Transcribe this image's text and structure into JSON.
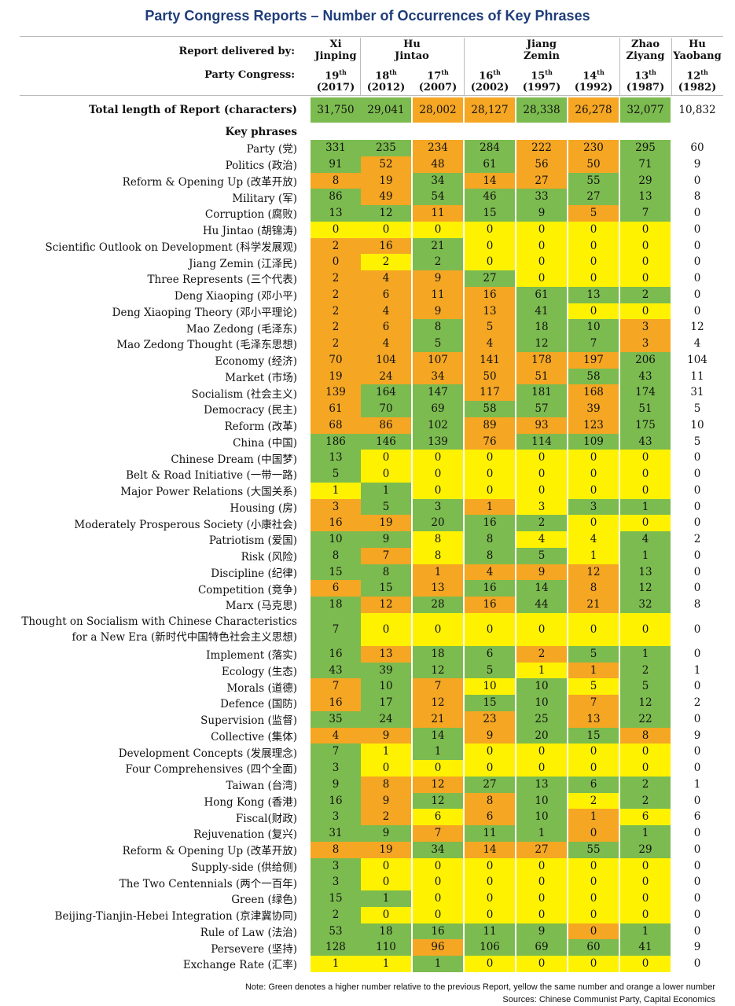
{
  "title": "Party Congress Reports – Number of Occurrences of Key Phrases",
  "colors": {
    "green": "#7cbb4f",
    "yellow": "#fff200",
    "orange": "#f5a623"
  },
  "header": {
    "delivered_label": "Report delivered by:",
    "congress_label": "Party Congress:",
    "leaders": [
      {
        "name": "Xi\nJinping"
      },
      {
        "name": "Hu\nJintao"
      },
      {
        "name": "Jiang\nZemin"
      },
      {
        "name": "Zhao\nZiyang"
      },
      {
        "name": "Hu\nYaobang"
      }
    ],
    "congresses": [
      {
        "num": "19",
        "sup": "th",
        "year": "(2017)"
      },
      {
        "num": "18",
        "sup": "th",
        "year": "(2012)"
      },
      {
        "num": "17",
        "sup": "th",
        "year": "(2007)"
      },
      {
        "num": "16",
        "sup": "th",
        "year": "(2002)"
      },
      {
        "num": "15",
        "sup": "th",
        "year": "(1997)"
      },
      {
        "num": "14",
        "sup": "th",
        "year": "(1992)"
      },
      {
        "num": "13",
        "sup": "th",
        "year": "(1987)"
      },
      {
        "num": "12",
        "sup": "th",
        "year": "(1982)"
      }
    ]
  },
  "total_label": "Total length of Report (characters)",
  "key_phrases_label": "Key phrases",
  "note": "Note: Green denotes a higher number relative to the previous Report, yellow the same number and orange a lower number",
  "sources": "Sources: Chinese Communist Party, Capital Economics",
  "chart_data": {
    "type": "table",
    "columns": [
      "19th (2017)",
      "18th (2012)",
      "17th (2007)",
      "16th (2002)",
      "15th (1997)",
      "14th (1992)",
      "13th (1987)",
      "12th (1982)"
    ],
    "color_legend": {
      "G": "higher than previous report",
      "Y": "same as previous report",
      "O": "lower than previous report",
      "W": "no comparison"
    },
    "total_length": {
      "values": [
        31750,
        29041,
        28002,
        28127,
        28338,
        26278,
        32077,
        10832
      ],
      "display": [
        "31,750",
        "29,041",
        "28,002",
        "28,127",
        "28,338",
        "26,278",
        "32,077",
        "10,832"
      ],
      "colors": "GGOOGOGW"
    },
    "rows": [
      {
        "label": "Party (党)",
        "values": [
          331,
          235,
          234,
          284,
          222,
          230,
          295,
          60
        ],
        "colors": "GGOGOOGW"
      },
      {
        "label": "Politics (政治)",
        "values": [
          91,
          52,
          48,
          61,
          56,
          50,
          71,
          9
        ],
        "colors": "GOOGOOGW"
      },
      {
        "label": "Reform & Opening Up (改革开放)",
        "values": [
          8,
          19,
          34,
          14,
          27,
          55,
          29,
          0
        ],
        "colors": "OOGOOGGW"
      },
      {
        "label": "Military (军)",
        "values": [
          86,
          49,
          54,
          46,
          33,
          27,
          13,
          8
        ],
        "colors": "GOGGGGGW"
      },
      {
        "label": "Corruption (腐败)",
        "values": [
          13,
          12,
          11,
          15,
          9,
          5,
          7,
          0
        ],
        "colors": "GGOGGOGW"
      },
      {
        "label": "Hu Jintao (胡锦涛)",
        "values": [
          0,
          0,
          0,
          0,
          0,
          0,
          0,
          0
        ],
        "colors": "YYYYYYYW"
      },
      {
        "label": "Scientific Outlook on Development (科学发展观)",
        "values": [
          2,
          16,
          21,
          0,
          0,
          0,
          0,
          0
        ],
        "colors": "OOGYYYYW"
      },
      {
        "label": "Jiang Zemin (江泽民)",
        "values": [
          0,
          2,
          2,
          0,
          0,
          0,
          0,
          0
        ],
        "colors": "OYGYYYYW"
      },
      {
        "label": "Three Represents (三个代表)",
        "values": [
          2,
          4,
          9,
          27,
          0,
          0,
          0,
          0
        ],
        "colors": "OOOGYYYW"
      },
      {
        "label": "Deng Xiaoping (邓小平)",
        "values": [
          2,
          6,
          11,
          16,
          61,
          13,
          2,
          0
        ],
        "colors": "OOOOGGGW"
      },
      {
        "label": "Deng Xiaoping Theory (邓小平理论)",
        "values": [
          2,
          4,
          9,
          13,
          41,
          0,
          0,
          0
        ],
        "colors": "OOOOGYYW"
      },
      {
        "label": "Mao Zedong (毛泽东)",
        "values": [
          2,
          6,
          8,
          5,
          18,
          10,
          3,
          12
        ],
        "colors": "OOGOGGOW"
      },
      {
        "label": "Mao Zedong Thought (毛泽东思想)",
        "values": [
          2,
          4,
          5,
          4,
          12,
          7,
          3,
          4
        ],
        "colors": "OOGOGGOW"
      },
      {
        "label": "Economy (经济)",
        "values": [
          70,
          104,
          107,
          141,
          178,
          197,
          206,
          104
        ],
        "colors": "OOOOOOGW"
      },
      {
        "label": "Market (市场)",
        "values": [
          19,
          24,
          34,
          50,
          51,
          58,
          43,
          11
        ],
        "colors": "OOOOOGGW"
      },
      {
        "label": "Socialism (社会主义)",
        "values": [
          139,
          164,
          147,
          117,
          181,
          168,
          174,
          31
        ],
        "colors": "OGGOGOGW"
      },
      {
        "label": "Democracy (民主)",
        "values": [
          61,
          70,
          69,
          58,
          57,
          39,
          51,
          5
        ],
        "colors": "OGGGGOGW"
      },
      {
        "label": "Reform (改革)",
        "values": [
          68,
          86,
          102,
          89,
          93,
          123,
          175,
          10
        ],
        "colors": "OOGOOOGW"
      },
      {
        "label": "China (中国)",
        "values": [
          186,
          146,
          139,
          76,
          114,
          109,
          43,
          5
        ],
        "colors": "GGGOGGGW"
      },
      {
        "label": "Chinese Dream (中国梦)",
        "values": [
          13,
          0,
          0,
          0,
          0,
          0,
          0,
          0
        ],
        "colors": "GYYYYYYW"
      },
      {
        "label": "Belt & Road Initiative (一带一路)",
        "values": [
          5,
          0,
          0,
          0,
          0,
          0,
          0,
          0
        ],
        "colors": "GYYYYYYW"
      },
      {
        "label": "Major Power Relations (大国关系)",
        "values": [
          1,
          1,
          0,
          0,
          0,
          0,
          0,
          0
        ],
        "colors": "YGYYYYYW"
      },
      {
        "label": "Housing (房)",
        "values": [
          3,
          5,
          3,
          1,
          3,
          3,
          1,
          0
        ],
        "colors": "OGGOYGGW"
      },
      {
        "label": "Moderately Prosperous Society (小康社会)",
        "values": [
          16,
          19,
          20,
          16,
          2,
          0,
          0,
          0
        ],
        "colors": "OOGGGYYW"
      },
      {
        "label": "Patriotism (爱国)",
        "values": [
          10,
          9,
          8,
          8,
          4,
          4,
          4,
          2
        ],
        "colors": "GGYGYYGW"
      },
      {
        "label": "Risk (风险)",
        "values": [
          8,
          7,
          8,
          8,
          5,
          1,
          1,
          0
        ],
        "colors": "GOYGGYGW"
      },
      {
        "label": "Discipline (纪律)",
        "values": [
          15,
          8,
          1,
          4,
          9,
          12,
          13,
          0
        ],
        "colors": "GGOOOOGW"
      },
      {
        "label": "Competition (竞争)",
        "values": [
          6,
          15,
          13,
          16,
          14,
          8,
          12,
          0
        ],
        "colors": "OGOGGOGW"
      },
      {
        "label": "Marx (马克思)",
        "values": [
          18,
          12,
          28,
          16,
          44,
          21,
          32,
          8
        ],
        "colors": "GOGOGOGW"
      },
      {
        "label": "Thought on Socialism with Chinese Characteristics\nfor a New Era (新时代中国特色社会主义思想)",
        "values": [
          7,
          0,
          0,
          0,
          0,
          0,
          0,
          0
        ],
        "colors": "GYYYYYYW"
      },
      {
        "label": "Implement (落实)",
        "values": [
          16,
          13,
          18,
          6,
          2,
          5,
          1,
          0
        ],
        "colors": "GOGGOGGW"
      },
      {
        "label": "Ecology (生态)",
        "values": [
          43,
          39,
          12,
          5,
          1,
          1,
          2,
          1
        ],
        "colors": "GGGGYOGW"
      },
      {
        "label": "Morals (道德)",
        "values": [
          7,
          10,
          7,
          10,
          10,
          5,
          5,
          0
        ],
        "colors": "OGOYGYGW"
      },
      {
        "label": "Defence (国防)",
        "values": [
          16,
          17,
          12,
          15,
          10,
          7,
          12,
          2
        ],
        "colors": "OGOGGOGW"
      },
      {
        "label": "Supervision (监督)",
        "values": [
          35,
          24,
          21,
          23,
          25,
          13,
          22,
          0
        ],
        "colors": "GGOOGOGW"
      },
      {
        "label": "Collective (集体)",
        "values": [
          4,
          9,
          14,
          9,
          20,
          15,
          8,
          9
        ],
        "colors": "OOGOGGOW"
      },
      {
        "label": "Development Concepts (发展理念)",
        "values": [
          7,
          1,
          1,
          0,
          0,
          0,
          0,
          0
        ],
        "colors": "GYGYYYYW"
      },
      {
        "label": "Four Comprehensives (四个全面)",
        "values": [
          3,
          0,
          0,
          0,
          0,
          0,
          0,
          0
        ],
        "colors": "GYYYYYYW"
      },
      {
        "label": "Taiwan (台湾)",
        "values": [
          9,
          8,
          12,
          27,
          13,
          6,
          2,
          1
        ],
        "colors": "GOOGGGGW"
      },
      {
        "label": "Hong Kong (香港)",
        "values": [
          16,
          9,
          12,
          8,
          10,
          2,
          2,
          0
        ],
        "colors": "GOGOGYGW"
      },
      {
        "label": "Fiscal(财政)",
        "values": [
          3,
          2,
          6,
          6,
          10,
          1,
          6,
          6
        ],
        "colors": "GOYOGOYW"
      },
      {
        "label": "Rejuvenation (复兴)",
        "values": [
          31,
          9,
          7,
          11,
          1,
          0,
          1,
          0
        ],
        "colors": "GGOGGOGW"
      },
      {
        "label": "Reform & Opening Up (改革开放)",
        "values": [
          8,
          19,
          34,
          14,
          27,
          55,
          29,
          0
        ],
        "colors": "OOGOOGGW"
      },
      {
        "label": "Supply-side (供给侧)",
        "values": [
          3,
          0,
          0,
          0,
          0,
          0,
          0,
          0
        ],
        "colors": "GYYYYYYW"
      },
      {
        "label": "The Two Centennials (两个一百年)",
        "values": [
          3,
          0,
          0,
          0,
          0,
          0,
          0,
          0
        ],
        "colors": "GYYYYYYW"
      },
      {
        "label": "Green (绿色)",
        "values": [
          15,
          1,
          0,
          0,
          0,
          0,
          0,
          0
        ],
        "colors": "GGYYYYYW"
      },
      {
        "label": "Beijing-Tianjin-Hebei Integration (京津冀协同)",
        "values": [
          2,
          0,
          0,
          0,
          0,
          0,
          0,
          0
        ],
        "colors": "GYYYYYYW"
      },
      {
        "label": "Rule of Law (法治)",
        "values": [
          53,
          18,
          16,
          11,
          9,
          0,
          1,
          0
        ],
        "colors": "GGGGGOGW"
      },
      {
        "label": "Persevere (坚持)",
        "values": [
          128,
          110,
          96,
          106,
          69,
          60,
          41,
          9
        ],
        "colors": "GGOGGGGW"
      },
      {
        "label": "Exchange Rate (汇率)",
        "values": [
          1,
          1,
          1,
          0,
          0,
          0,
          0,
          0
        ],
        "colors": "YYGYYYYW"
      }
    ]
  }
}
